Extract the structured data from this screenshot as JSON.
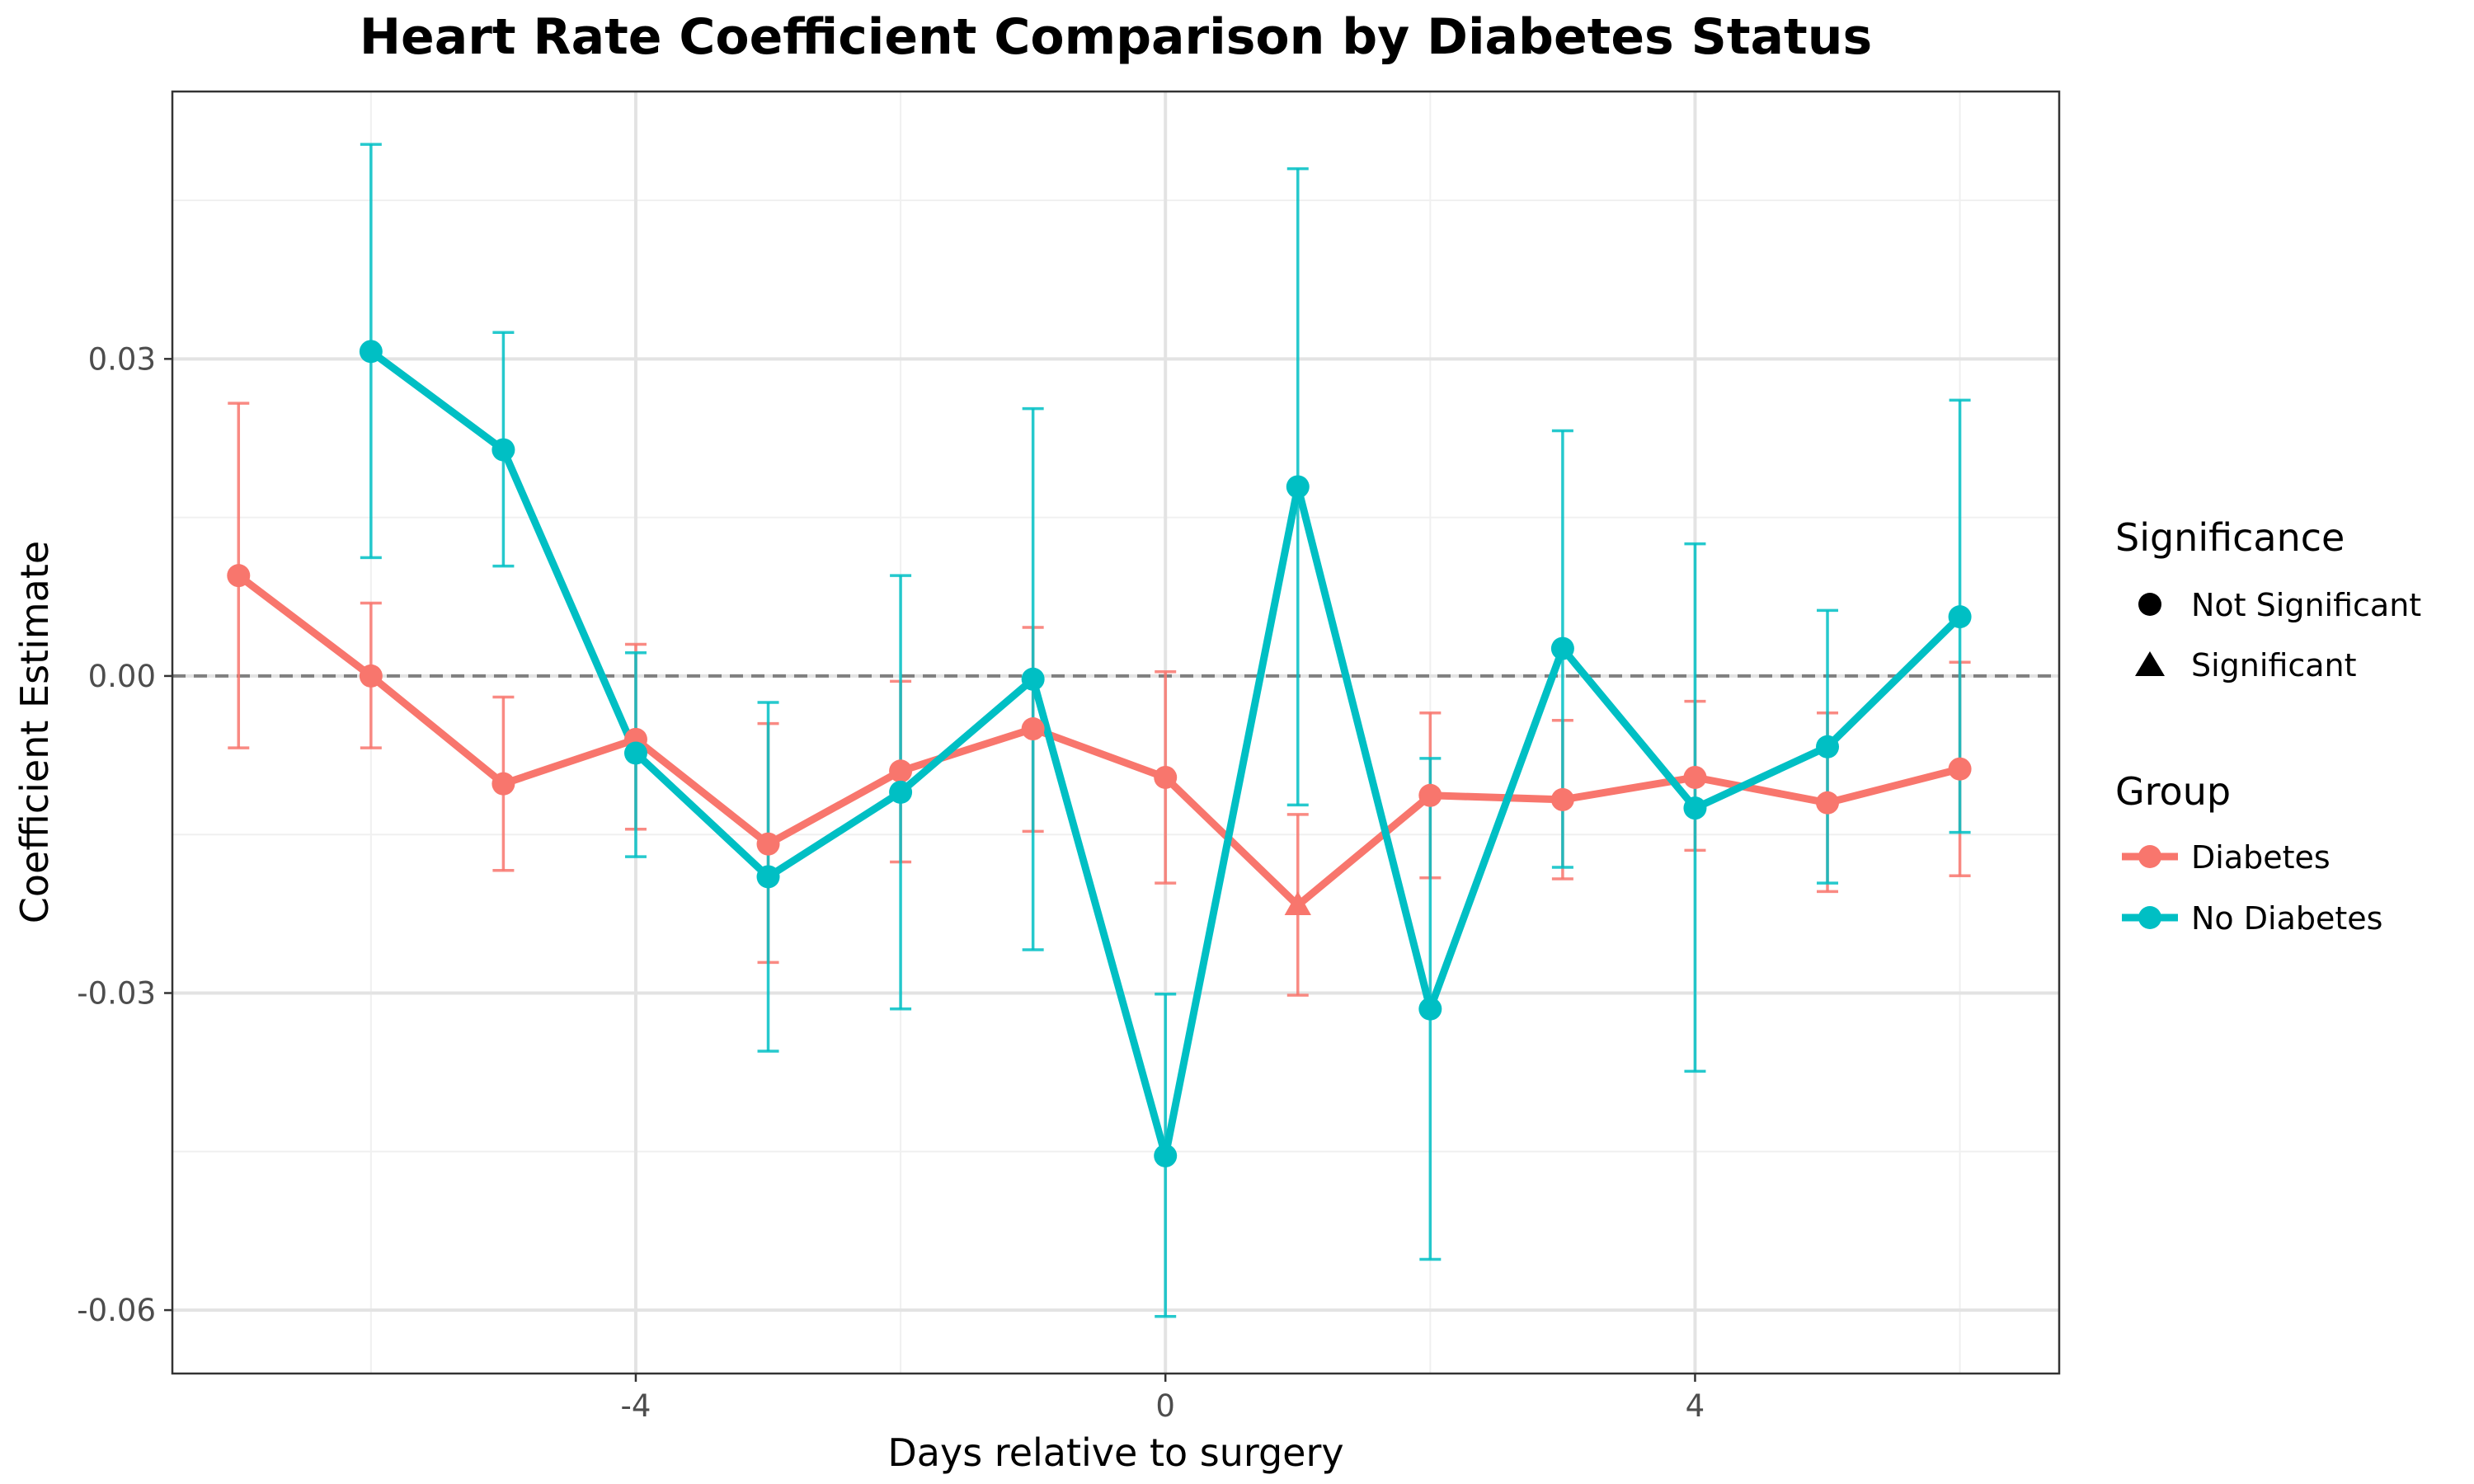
{
  "chart_data": {
    "type": "line",
    "title": "Heart Rate Coefficient Comparison by Diabetes Status",
    "xlabel": "Days relative to surgery",
    "ylabel": "Coefficient Estimate",
    "xlim": [
      -7.5,
      6.75
    ],
    "ylim": [
      -0.066,
      0.0553
    ],
    "x_ticks": [
      -4,
      0,
      4
    ],
    "x_tick_labels": [
      "-4",
      "0",
      "4"
    ],
    "y_ticks": [
      0.03,
      0.0,
      -0.03,
      -0.06
    ],
    "y_tick_labels": [
      "0.03",
      "0.00",
      "-0.03",
      "-0.06"
    ],
    "x_minor": [
      -6,
      -2,
      2,
      6
    ],
    "y_minor": [
      0.045,
      0.015,
      -0.015,
      -0.045
    ],
    "reference_line_y": 0.0,
    "grid": true,
    "legend_placement": "right",
    "series": [
      {
        "name": "Diabetes",
        "color": "#F8766D",
        "x": [
          -7,
          -6,
          -5,
          -4,
          -3,
          -2,
          -1,
          0,
          1,
          2,
          3,
          4,
          5,
          6
        ],
        "y": [
          0.0095,
          0.0,
          -0.0102,
          -0.006,
          -0.0159,
          -0.009,
          -0.005,
          -0.0096,
          -0.0217,
          -0.0113,
          -0.0117,
          -0.0096,
          -0.012,
          -0.0088
        ],
        "lower": [
          -0.0068,
          -0.0068,
          -0.0184,
          -0.0145,
          -0.0271,
          -0.0176,
          -0.0147,
          -0.0196,
          -0.0302,
          -0.0191,
          -0.0192,
          -0.0165,
          -0.0204,
          -0.0189
        ],
        "upper": [
          0.0258,
          0.0069,
          -0.002,
          0.003,
          -0.0045,
          -0.0005,
          0.0046,
          0.0004,
          -0.0131,
          -0.0035,
          -0.0042,
          -0.0024,
          -0.0035,
          0.0013
        ],
        "significance": [
          "Not Significant",
          "Not Significant",
          "Not Significant",
          "Not Significant",
          "Not Significant",
          "Not Significant",
          "Not Significant",
          "Not Significant",
          "Significant",
          "Not Significant",
          "Not Significant",
          "Not Significant",
          "Not Significant",
          "Not Significant"
        ]
      },
      {
        "name": "No Diabetes",
        "color": "#00BFC4",
        "x": [
          -6,
          -5,
          -4,
          -3,
          -2,
          -1,
          0,
          1,
          2,
          3,
          4,
          5,
          6
        ],
        "y": [
          0.0307,
          0.0214,
          -0.0073,
          -0.019,
          -0.011,
          -0.0003,
          -0.0454,
          0.0179,
          -0.0315,
          0.0026,
          -0.0125,
          -0.0067,
          0.0056
        ],
        "lower": [
          0.0112,
          0.0104,
          -0.0171,
          -0.0355,
          -0.0315,
          -0.0259,
          -0.0606,
          -0.0122,
          -0.0552,
          -0.0181,
          -0.0374,
          -0.0196,
          -0.0148
        ],
        "upper": [
          0.0503,
          0.0325,
          0.0022,
          -0.0025,
          0.0095,
          0.0253,
          -0.0301,
          0.048,
          -0.0078,
          0.0232,
          0.0125,
          0.0062,
          0.0261
        ],
        "significance": [
          "Not Significant",
          "Not Significant",
          "Not Significant",
          "Not Significant",
          "Not Significant",
          "Not Significant",
          "Not Significant",
          "Not Significant",
          "Not Significant",
          "Not Significant",
          "Not Significant",
          "Not Significant",
          "Not Significant"
        ]
      }
    ],
    "legend": {
      "significance_title": "Significance",
      "significance_items": [
        {
          "label": "Not Significant",
          "shape": "circle"
        },
        {
          "label": "Significant",
          "shape": "triangle"
        }
      ],
      "group_title": "Group",
      "group_items": [
        {
          "label": "Diabetes",
          "color": "#F8766D"
        },
        {
          "label": "No Diabetes",
          "color": "#00BFC4"
        }
      ]
    }
  }
}
